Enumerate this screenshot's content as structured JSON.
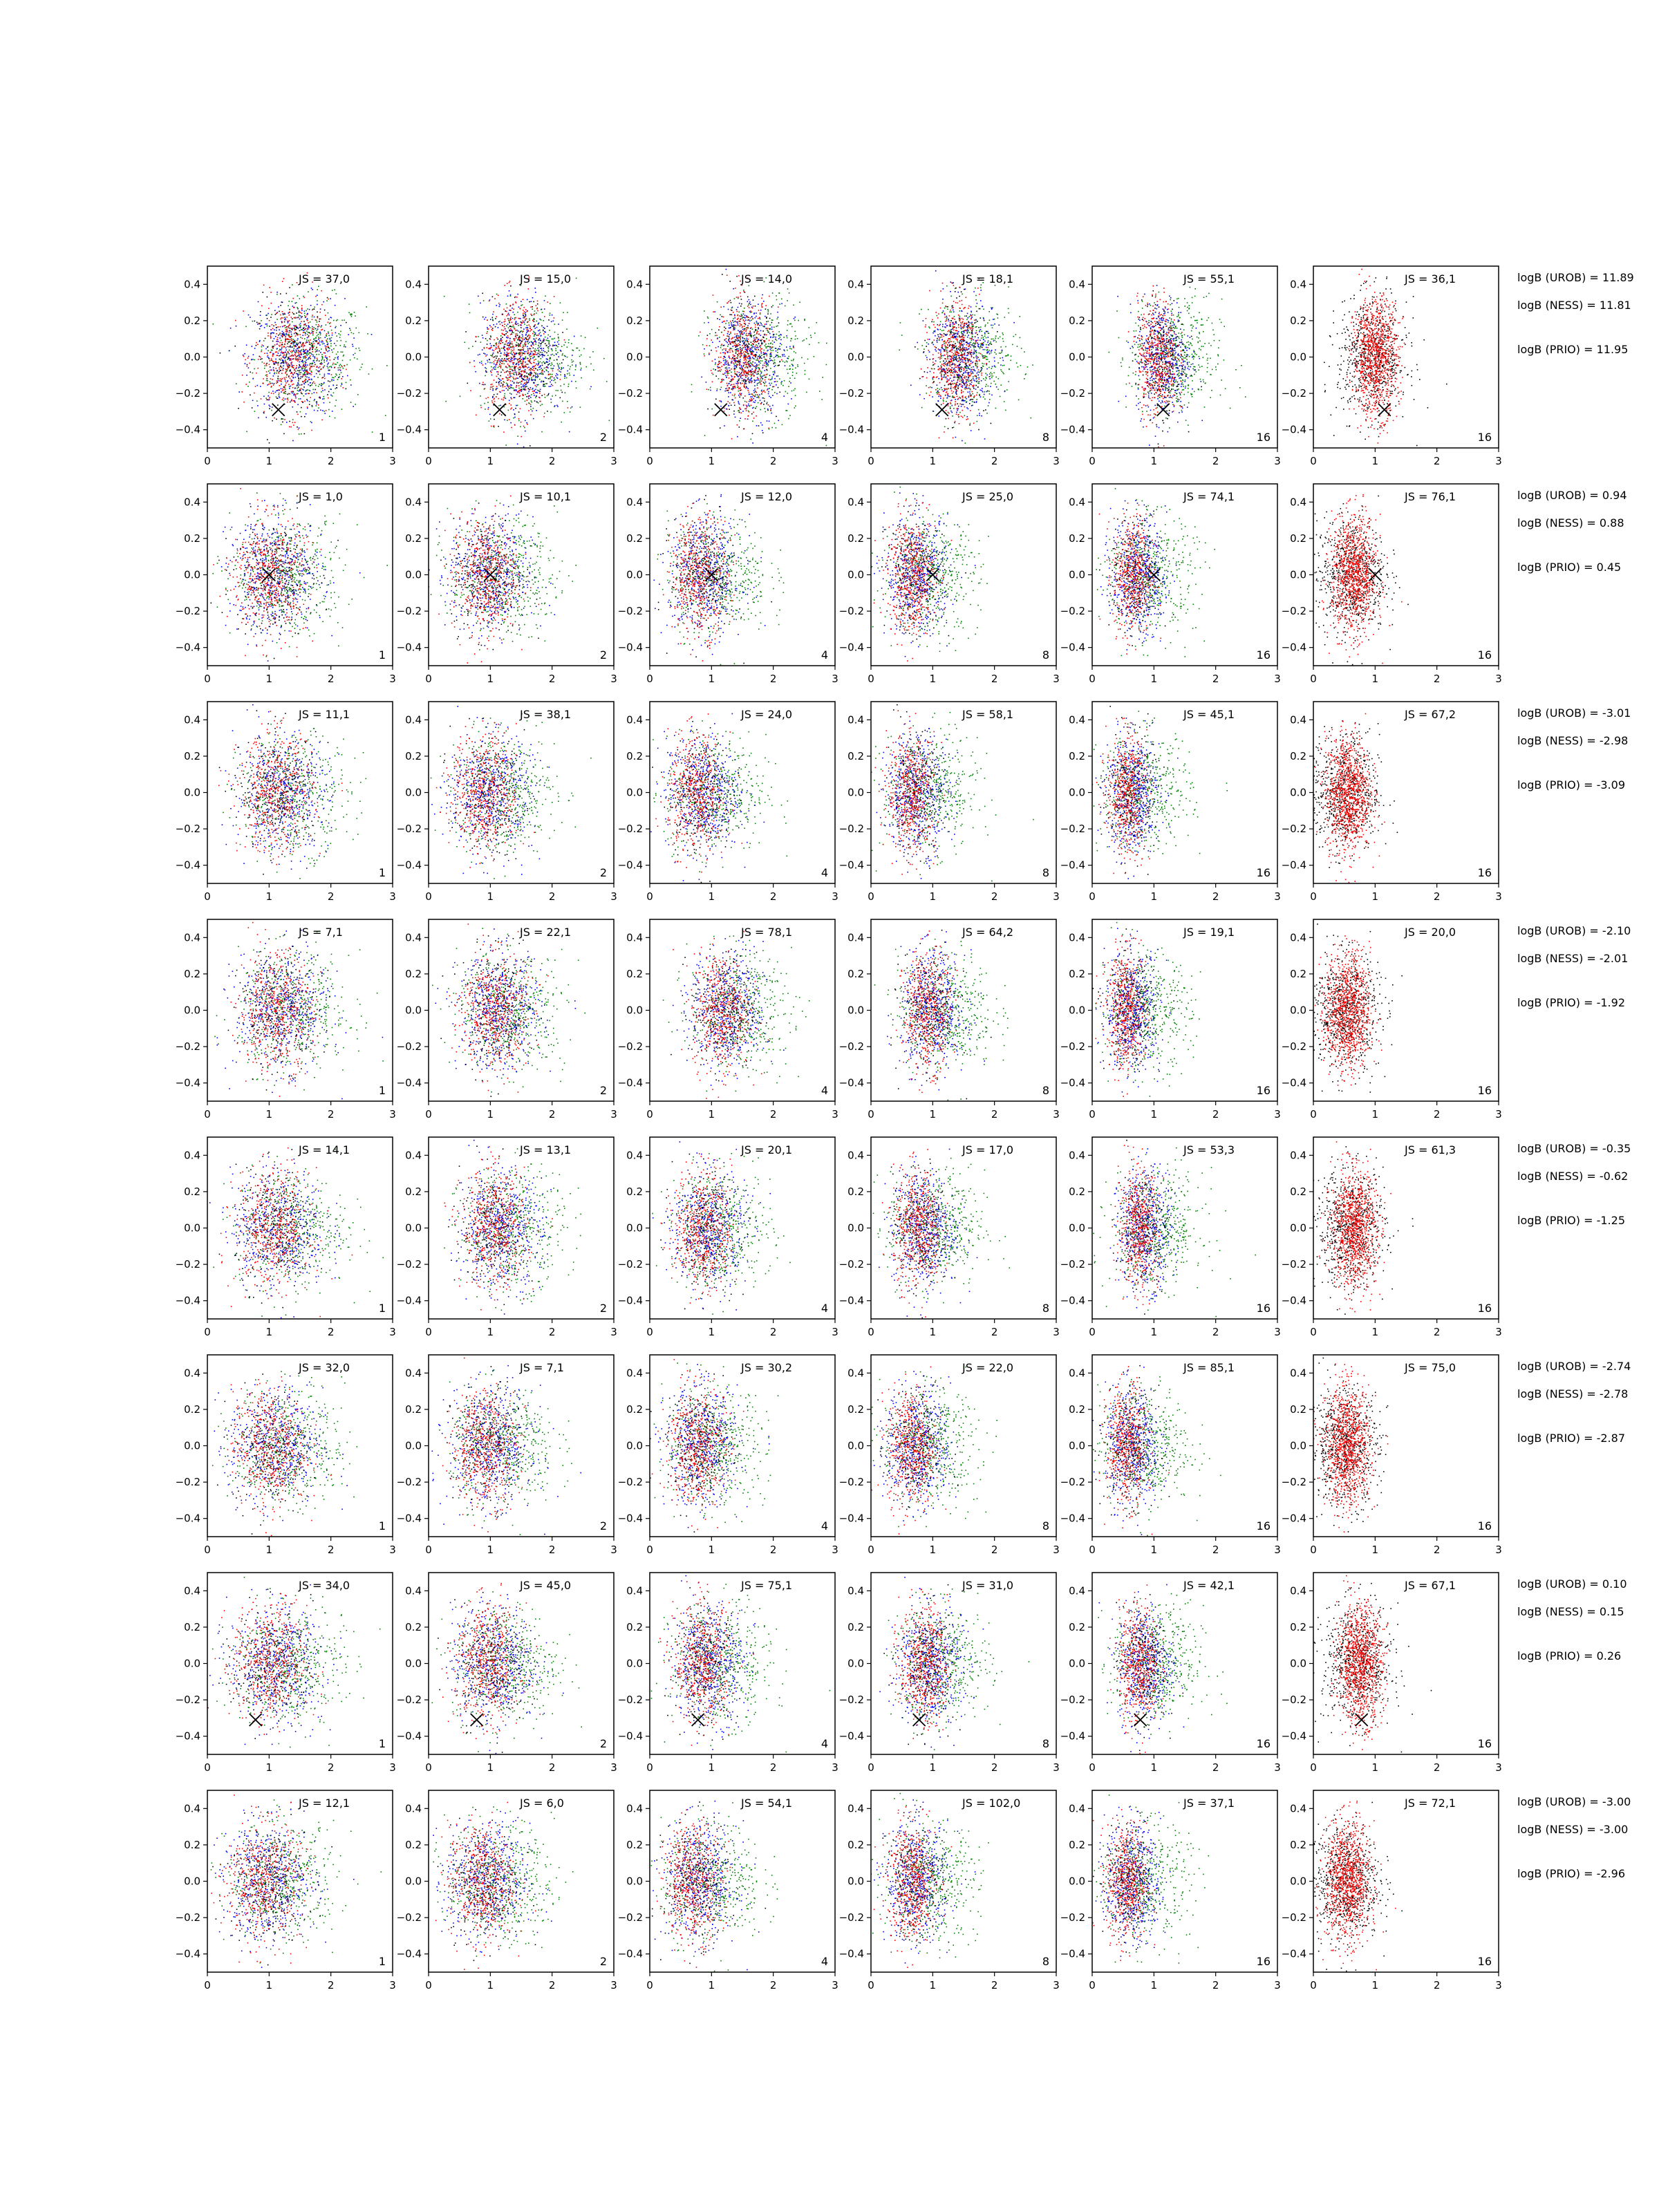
{
  "figure": {
    "scatter_colors": [
      "#008000",
      "#0000ff",
      "#ff0000",
      "#000000"
    ],
    "marker_color": "#000000"
  },
  "chart_data": {
    "type": "scatter",
    "xlim": [
      0,
      3
    ],
    "ylim": [
      -0.5,
      0.5
    ],
    "xticks": [
      "0",
      "1",
      "2",
      "3"
    ],
    "yticks": [
      "−0.4",
      "−0.2",
      "0.0",
      "0.2",
      "0.4"
    ],
    "grid": false,
    "legend": "none",
    "panel_corner_labels": [
      "1",
      "2",
      "4",
      "8",
      "16",
      "16"
    ],
    "rows": [
      {
        "js": [
          "JS = 37,0",
          "JS = 15,0",
          "JS = 14,0",
          "JS = 18,1",
          "JS = 55,1",
          "JS = 36,1"
        ],
        "logB": [
          "logB (UROB) = 11.89",
          "logB (NESS) = 11.81",
          "logB (PRIO) = 11.95"
        ],
        "marker": [
          1.15,
          -0.29
        ],
        "centers": [
          1.4,
          1.45,
          1.55,
          1.4,
          1.1,
          1.0
        ]
      },
      {
        "js": [
          "JS = 1,0",
          "JS = 10,1",
          "JS = 12,0",
          "JS = 25,0",
          "JS = 74,1",
          "JS = 76,1"
        ],
        "logB": [
          "logB (UROB) = 0.94",
          "logB (NESS) = 0.88",
          "logB (PRIO) = 0.45"
        ],
        "marker": [
          1.0,
          0.0
        ],
        "centers": [
          1.05,
          0.95,
          0.85,
          0.7,
          0.7,
          0.65
        ]
      },
      {
        "js": [
          "JS = 11,1",
          "JS = 38,1",
          "JS = 24,0",
          "JS = 58,1",
          "JS = 45,1",
          "JS = 67,2"
        ],
        "logB": [
          "logB (UROB) = -3.01",
          "logB (NESS) = -2.98",
          "logB (PRIO) = -3.09"
        ],
        "marker": null,
        "centers": [
          1.15,
          0.95,
          0.8,
          0.7,
          0.6,
          0.55
        ]
      },
      {
        "js": [
          "JS = 7,1",
          "JS = 22,1",
          "JS = 78,1",
          "JS = 64,2",
          "JS = 19,1",
          "JS = 20,0"
        ],
        "logB": [
          "logB (UROB) = -2.10",
          "logB (NESS) = -2.01",
          "logB (PRIO) = -1.92"
        ],
        "marker": null,
        "centers": [
          1.15,
          1.1,
          1.2,
          0.95,
          0.6,
          0.55
        ]
      },
      {
        "js": [
          "JS = 14,1",
          "JS = 13,1",
          "JS = 20,1",
          "JS = 17,0",
          "JS = 53,3",
          "JS = 61,3"
        ],
        "logB": [
          "logB (UROB) = -0.35",
          "logB (NESS) = -0.62",
          "logB (PRIO) = -1.25"
        ],
        "marker": null,
        "centers": [
          1.1,
          1.1,
          0.9,
          0.8,
          0.8,
          0.65
        ]
      },
      {
        "js": [
          "JS = 32,0",
          "JS = 7,1",
          "JS = 30,2",
          "JS = 22,0",
          "JS = 85,1",
          "JS = 75,0"
        ],
        "logB": [
          "logB (UROB) = -2.74",
          "logB (NESS) = -2.78",
          "logB (PRIO) = -2.87"
        ],
        "marker": null,
        "centers": [
          1.05,
          0.95,
          0.8,
          0.7,
          0.6,
          0.55
        ]
      },
      {
        "js": [
          "JS = 34,0",
          "JS = 45,0",
          "JS = 75,1",
          "JS = 31,0",
          "JS = 42,1",
          "JS = 67,1"
        ],
        "logB": [
          "logB (UROB) = 0.10",
          "logB (NESS) = 0.15",
          "logB (PRIO) = 0.26"
        ],
        "marker": [
          0.78,
          -0.31
        ],
        "centers": [
          1.05,
          1.0,
          0.9,
          0.9,
          0.8,
          0.75
        ]
      },
      {
        "js": [
          "JS = 12,1",
          "JS = 6,0",
          "JS = 54,1",
          "JS = 102,0",
          "JS = 37,1",
          "JS = 72,1"
        ],
        "logB": [
          "logB (UROB) = -3.00",
          "logB (NESS) = -3.00",
          "logB (PRIO) = -2.96"
        ],
        "marker": null,
        "centers": [
          0.95,
          0.9,
          0.75,
          0.7,
          0.6,
          0.55
        ]
      }
    ]
  }
}
